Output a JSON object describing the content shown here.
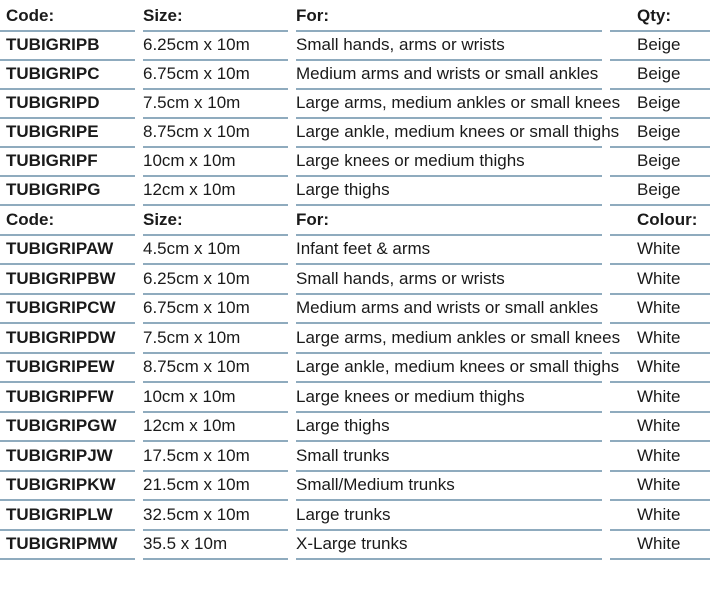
{
  "page": {
    "background_color": "#ffffff",
    "text_color": "#1a1a1a",
    "rule_color": "#8fabbe"
  },
  "tables": [
    {
      "name": "beige-products",
      "headers": [
        "Code:",
        "Size:",
        "For:",
        "Qty:"
      ],
      "rows": [
        {
          "code": "TUBIGRIPB",
          "size": "6.25cm x 10m",
          "for": "Small hands, arms or wrists",
          "colour": "Beige"
        },
        {
          "code": "TUBIGRIPC",
          "size": "6.75cm x 10m",
          "for": "Medium arms and wrists or small ankles",
          "colour": "Beige"
        },
        {
          "code": "TUBIGRIPD",
          "size": "7.5cm x 10m",
          "for": "Large arms, medium ankles or small knees",
          "colour": "Beige"
        },
        {
          "code": "TUBIGRIPE",
          "size": "8.75cm x 10m",
          "for": "Large ankle, medium knees or small thighs",
          "colour": "Beige"
        },
        {
          "code": "TUBIGRIPF",
          "size": "10cm x 10m",
          "for": "Large knees or medium thighs",
          "colour": "Beige"
        },
        {
          "code": "TUBIGRIPG",
          "size": "12cm x 10m",
          "for": "Large thighs",
          "colour": "Beige"
        }
      ]
    },
    {
      "name": "white-products",
      "headers": [
        "Code:",
        "Size:",
        "For:",
        "Colour:"
      ],
      "rows": [
        {
          "code": "TUBIGRIPAW",
          "size": "4.5cm x 10m",
          "for": "Infant feet & arms",
          "colour": "White"
        },
        {
          "code": "TUBIGRIPBW",
          "size": "6.25cm x 10m",
          "for": "Small hands, arms or wrists",
          "colour": "White"
        },
        {
          "code": "TUBIGRIPCW",
          "size": "6.75cm x 10m",
          "for": "Medium arms and wrists or small ankles",
          "colour": "White"
        },
        {
          "code": "TUBIGRIPDW",
          "size": "7.5cm x 10m",
          "for": "Large arms, medium ankles or small knees",
          "colour": "White"
        },
        {
          "code": "TUBIGRIPEW",
          "size": "8.75cm x 10m",
          "for": "Large ankle, medium knees or small thighs",
          "colour": "White"
        },
        {
          "code": "TUBIGRIPFW",
          "size": "10cm x 10m",
          "for": "Large knees or medium thighs",
          "colour": "White"
        },
        {
          "code": "TUBIGRIPGW",
          "size": "12cm x 10m",
          "for": "Large thighs",
          "colour": "White"
        },
        {
          "code": "TUBIGRIPJW",
          "size": "17.5cm x 10m",
          "for": "Small trunks",
          "colour": "White"
        },
        {
          "code": "TUBIGRIPKW",
          "size": "21.5cm x 10m",
          "for": "Small/Medium trunks",
          "colour": "White"
        },
        {
          "code": "TUBIGRIPLW",
          "size": "32.5cm x 10m",
          "for": "Large trunks",
          "colour": "White"
        },
        {
          "code": "TUBIGRIPMW",
          "size": "35.5 x 10m",
          "for": "X-Large trunks",
          "colour": "White"
        }
      ]
    }
  ]
}
